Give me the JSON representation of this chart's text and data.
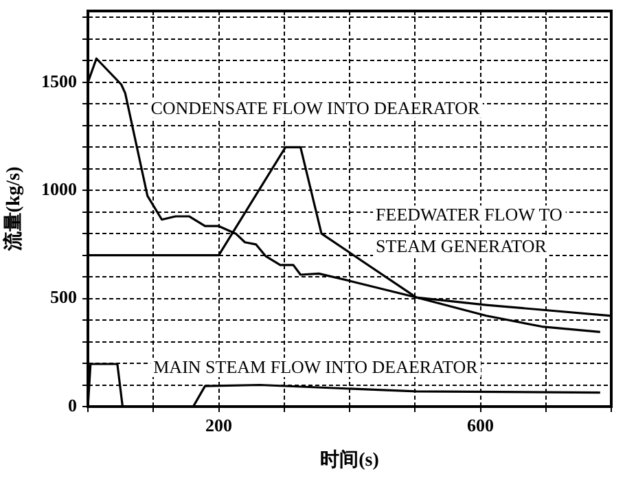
{
  "chart_data": {
    "type": "line",
    "xlabel": "时间(s)",
    "ylabel": "流量(kg/s)",
    "xlim": [
      0,
      800
    ],
    "ylim": [
      0,
      1830
    ],
    "xticks": [
      {
        "value": 0,
        "label": null
      },
      {
        "value": 100,
        "label": null
      },
      200,
      {
        "value": 300,
        "label": null
      },
      {
        "value": 400,
        "label": null
      },
      {
        "value": 500,
        "label": null
      },
      600,
      {
        "value": 700,
        "label": null
      },
      {
        "value": 800,
        "label": null
      }
    ],
    "yticks": [
      0,
      {
        "value": 100,
        "label": null
      },
      {
        "value": 200,
        "label": null
      },
      {
        "value": 300,
        "label": null
      },
      {
        "value": 400,
        "label": null
      },
      500,
      {
        "value": 600,
        "label": null
      },
      {
        "value": 700,
        "label": null
      },
      {
        "value": 800,
        "label": null
      },
      {
        "value": 900,
        "label": null
      },
      1000,
      {
        "value": 1100,
        "label": null
      },
      {
        "value": 1200,
        "label": null
      },
      {
        "value": 1300,
        "label": null
      },
      {
        "value": 1400,
        "label": null
      },
      1500,
      {
        "value": 1600,
        "label": null
      },
      {
        "value": 1700,
        "label": null
      },
      {
        "value": 1800,
        "label": null
      }
    ],
    "grid": true,
    "legend": false,
    "marker": "none",
    "line_style": "solid",
    "series": [
      {
        "name": "CONDENSATE FLOW INTO DEAERATOR",
        "color": "#000000",
        "x": [
          0,
          13,
          51,
          57,
          91,
          113,
          134,
          155,
          179,
          200,
          226,
          240,
          257,
          272,
          294,
          314,
          325,
          353,
          402,
          502,
          609,
          694,
          783
        ],
        "values": [
          1500,
          1610,
          1490,
          1450,
          975,
          865,
          880,
          880,
          835,
          835,
          800,
          760,
          750,
          695,
          655,
          655,
          610,
          615,
          580,
          505,
          420,
          370,
          345
        ]
      },
      {
        "name": "FEEDWATER FLOW TO STEAM GENERATOR",
        "color": "#000000",
        "x": [
          0,
          200,
          302,
          325,
          357,
          502,
          609,
          800
        ],
        "values": [
          700,
          700,
          1200,
          1200,
          800,
          505,
          470,
          420
        ]
      },
      {
        "name": "MAIN STEAM FLOW INTO DEAERATOR",
        "color": "#000000",
        "x": [
          0,
          4,
          45,
          53,
          161,
          179,
          263,
          502,
          783
        ],
        "values": [
          0,
          197,
          197,
          0,
          0,
          95,
          100,
          70,
          65
        ]
      }
    ]
  }
}
